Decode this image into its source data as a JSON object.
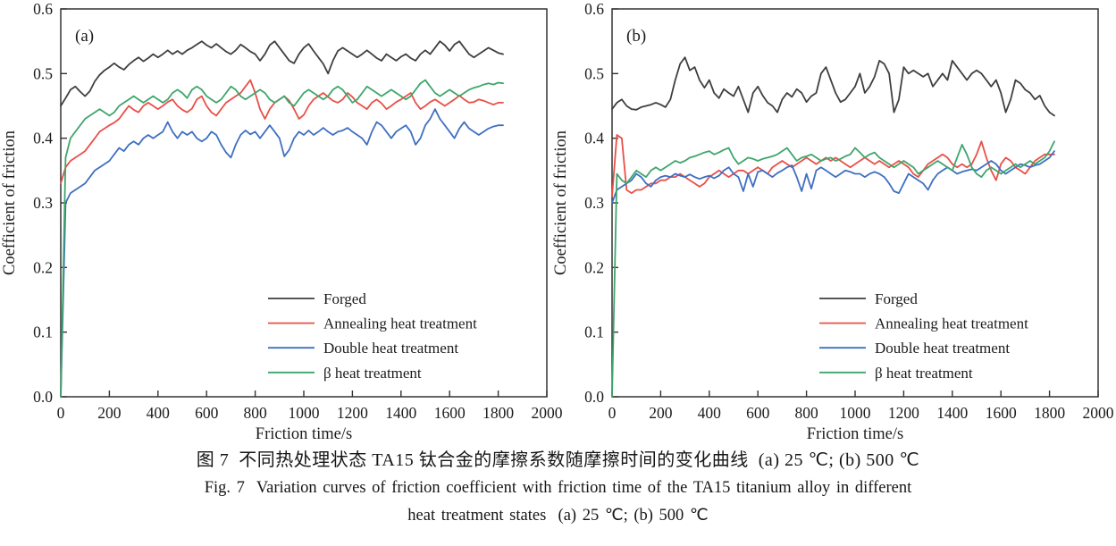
{
  "figure": {
    "caption_zh": "图 7  不同热处理状态 TA15 钛合金的摩擦系数随摩擦时间的变化曲线  (a) 25 ℃; (b) 500 ℃",
    "caption_en_line1": "Fig. 7  Variation curves of friction coefficient with friction time of the TA15 titanium alloy in different",
    "caption_en_line2": "heat treatment states  (a) 25 ℃; (b) 500 ℃"
  },
  "chart_data": [
    {
      "type": "line",
      "panel_label": "(a)",
      "temperature": "25 ℃",
      "xlabel": "Friction time/s",
      "ylabel": "Coefficient of friction",
      "xlim": [
        0,
        2000
      ],
      "ylim": [
        0.0,
        0.6
      ],
      "x_ticks": [
        0,
        200,
        400,
        600,
        800,
        1000,
        1200,
        1400,
        1600,
        1800,
        2000
      ],
      "y_ticks": [
        0.0,
        0.1,
        0.2,
        0.3,
        0.4,
        0.5,
        0.6
      ],
      "grid": false,
      "legend_position": "inside lower-right",
      "x_start": 0,
      "x_step": 20,
      "series": [
        {
          "name": "Forged",
          "color": "#3f3f3f",
          "values": [
            0.45,
            0.462,
            0.475,
            0.48,
            0.472,
            0.465,
            0.473,
            0.488,
            0.498,
            0.505,
            0.51,
            0.516,
            0.51,
            0.506,
            0.514,
            0.52,
            0.525,
            0.519,
            0.524,
            0.53,
            0.525,
            0.53,
            0.536,
            0.53,
            0.535,
            0.53,
            0.536,
            0.54,
            0.545,
            0.55,
            0.544,
            0.54,
            0.546,
            0.54,
            0.534,
            0.53,
            0.536,
            0.545,
            0.54,
            0.534,
            0.53,
            0.52,
            0.53,
            0.544,
            0.55,
            0.54,
            0.53,
            0.52,
            0.516,
            0.53,
            0.54,
            0.546,
            0.535,
            0.525,
            0.515,
            0.5,
            0.52,
            0.535,
            0.54,
            0.535,
            0.53,
            0.525,
            0.53,
            0.536,
            0.53,
            0.524,
            0.52,
            0.53,
            0.525,
            0.52,
            0.526,
            0.53,
            0.524,
            0.52,
            0.53,
            0.536,
            0.53,
            0.54,
            0.55,
            0.544,
            0.535,
            0.545,
            0.55,
            0.54,
            0.53,
            0.525,
            0.53,
            0.535,
            0.54,
            0.536,
            0.532,
            0.53
          ]
        },
        {
          "name": "Annealing heat treatment",
          "color": "#e94f48",
          "values": [
            0.33,
            0.355,
            0.365,
            0.37,
            0.375,
            0.38,
            0.39,
            0.4,
            0.41,
            0.415,
            0.42,
            0.424,
            0.43,
            0.44,
            0.45,
            0.444,
            0.44,
            0.45,
            0.455,
            0.45,
            0.445,
            0.45,
            0.456,
            0.46,
            0.45,
            0.444,
            0.44,
            0.446,
            0.46,
            0.465,
            0.45,
            0.44,
            0.435,
            0.445,
            0.455,
            0.46,
            0.465,
            0.47,
            0.48,
            0.49,
            0.47,
            0.445,
            0.43,
            0.445,
            0.455,
            0.46,
            0.465,
            0.458,
            0.445,
            0.43,
            0.436,
            0.45,
            0.46,
            0.465,
            0.47,
            0.464,
            0.458,
            0.455,
            0.46,
            0.47,
            0.464,
            0.455,
            0.45,
            0.445,
            0.455,
            0.46,
            0.454,
            0.445,
            0.45,
            0.456,
            0.46,
            0.465,
            0.47,
            0.455,
            0.445,
            0.45,
            0.456,
            0.46,
            0.455,
            0.45,
            0.455,
            0.46,
            0.466,
            0.46,
            0.455,
            0.456,
            0.46,
            0.458,
            0.455,
            0.452,
            0.455,
            0.455
          ]
        },
        {
          "name": "Double heat treatment",
          "color": "#3f6fc1",
          "values": [
            0.0,
            0.3,
            0.315,
            0.32,
            0.325,
            0.33,
            0.34,
            0.35,
            0.355,
            0.36,
            0.365,
            0.375,
            0.385,
            0.38,
            0.39,
            0.395,
            0.39,
            0.4,
            0.405,
            0.4,
            0.405,
            0.41,
            0.425,
            0.41,
            0.4,
            0.41,
            0.405,
            0.41,
            0.4,
            0.395,
            0.4,
            0.41,
            0.405,
            0.39,
            0.378,
            0.37,
            0.39,
            0.405,
            0.412,
            0.406,
            0.41,
            0.4,
            0.41,
            0.42,
            0.41,
            0.4,
            0.372,
            0.382,
            0.4,
            0.41,
            0.405,
            0.412,
            0.405,
            0.41,
            0.416,
            0.41,
            0.405,
            0.41,
            0.412,
            0.416,
            0.41,
            0.405,
            0.4,
            0.39,
            0.41,
            0.425,
            0.42,
            0.41,
            0.4,
            0.41,
            0.415,
            0.42,
            0.41,
            0.39,
            0.4,
            0.42,
            0.43,
            0.445,
            0.43,
            0.42,
            0.41,
            0.4,
            0.415,
            0.425,
            0.415,
            0.41,
            0.405,
            0.41,
            0.415,
            0.418,
            0.42,
            0.42
          ]
        },
        {
          "name": "β heat treatment",
          "color": "#3fa56c",
          "values": [
            0.0,
            0.37,
            0.4,
            0.41,
            0.42,
            0.43,
            0.435,
            0.44,
            0.445,
            0.44,
            0.435,
            0.44,
            0.45,
            0.455,
            0.46,
            0.465,
            0.46,
            0.455,
            0.46,
            0.465,
            0.46,
            0.455,
            0.46,
            0.47,
            0.475,
            0.47,
            0.462,
            0.475,
            0.48,
            0.475,
            0.465,
            0.46,
            0.455,
            0.46,
            0.47,
            0.48,
            0.475,
            0.465,
            0.46,
            0.465,
            0.47,
            0.475,
            0.47,
            0.46,
            0.455,
            0.46,
            0.465,
            0.455,
            0.45,
            0.46,
            0.47,
            0.475,
            0.47,
            0.465,
            0.46,
            0.465,
            0.475,
            0.48,
            0.475,
            0.465,
            0.455,
            0.46,
            0.47,
            0.48,
            0.475,
            0.47,
            0.465,
            0.47,
            0.475,
            0.47,
            0.465,
            0.46,
            0.465,
            0.475,
            0.485,
            0.49,
            0.48,
            0.47,
            0.465,
            0.47,
            0.475,
            0.47,
            0.465,
            0.47,
            0.475,
            0.478,
            0.48,
            0.483,
            0.485,
            0.483,
            0.486,
            0.485
          ]
        }
      ]
    },
    {
      "type": "line",
      "panel_label": "(b)",
      "temperature": "500 ℃",
      "xlabel": "Friction time/s",
      "ylabel": "Coefficient of friction",
      "xlim": [
        0,
        2000
      ],
      "ylim": [
        0.0,
        0.6
      ],
      "x_ticks": [
        0,
        200,
        400,
        600,
        800,
        1000,
        1200,
        1400,
        1600,
        1800,
        2000
      ],
      "y_ticks": [
        0.0,
        0.1,
        0.2,
        0.3,
        0.4,
        0.5,
        0.6
      ],
      "grid": false,
      "legend_position": "inside lower-right",
      "x_start": 0,
      "x_step": 20,
      "series": [
        {
          "name": "Forged",
          "color": "#3f3f3f",
          "values": [
            0.445,
            0.455,
            0.46,
            0.45,
            0.445,
            0.444,
            0.448,
            0.45,
            0.452,
            0.455,
            0.452,
            0.448,
            0.46,
            0.49,
            0.515,
            0.525,
            0.505,
            0.51,
            0.49,
            0.478,
            0.49,
            0.47,
            0.462,
            0.476,
            0.47,
            0.465,
            0.48,
            0.46,
            0.44,
            0.47,
            0.48,
            0.466,
            0.455,
            0.45,
            0.44,
            0.46,
            0.47,
            0.464,
            0.476,
            0.47,
            0.456,
            0.465,
            0.47,
            0.5,
            0.51,
            0.49,
            0.47,
            0.456,
            0.46,
            0.47,
            0.48,
            0.5,
            0.47,
            0.48,
            0.495,
            0.52,
            0.515,
            0.5,
            0.44,
            0.46,
            0.51,
            0.5,
            0.505,
            0.5,
            0.495,
            0.5,
            0.48,
            0.49,
            0.5,
            0.49,
            0.52,
            0.51,
            0.5,
            0.49,
            0.5,
            0.505,
            0.5,
            0.49,
            0.48,
            0.49,
            0.47,
            0.44,
            0.46,
            0.49,
            0.485,
            0.475,
            0.47,
            0.46,
            0.466,
            0.45,
            0.44,
            0.435
          ]
        },
        {
          "name": "Annealing heat treatment",
          "color": "#e94f48",
          "values": [
            0.31,
            0.405,
            0.4,
            0.32,
            0.315,
            0.32,
            0.32,
            0.325,
            0.33,
            0.33,
            0.335,
            0.335,
            0.34,
            0.34,
            0.345,
            0.34,
            0.335,
            0.33,
            0.325,
            0.33,
            0.34,
            0.345,
            0.35,
            0.345,
            0.34,
            0.345,
            0.35,
            0.35,
            0.345,
            0.35,
            0.355,
            0.35,
            0.345,
            0.355,
            0.36,
            0.365,
            0.36,
            0.355,
            0.36,
            0.365,
            0.37,
            0.365,
            0.36,
            0.365,
            0.37,
            0.365,
            0.37,
            0.365,
            0.36,
            0.355,
            0.36,
            0.365,
            0.37,
            0.365,
            0.36,
            0.365,
            0.36,
            0.355,
            0.36,
            0.365,
            0.36,
            0.355,
            0.345,
            0.34,
            0.35,
            0.36,
            0.365,
            0.37,
            0.375,
            0.37,
            0.36,
            0.355,
            0.36,
            0.355,
            0.36,
            0.375,
            0.395,
            0.37,
            0.35,
            0.335,
            0.36,
            0.37,
            0.365,
            0.355,
            0.35,
            0.345,
            0.355,
            0.365,
            0.37,
            0.375,
            0.375,
            0.375
          ]
        },
        {
          "name": "Double heat treatment",
          "color": "#3f6fc1",
          "values": [
            0.3,
            0.32,
            0.325,
            0.33,
            0.335,
            0.345,
            0.34,
            0.33,
            0.325,
            0.335,
            0.34,
            0.342,
            0.34,
            0.345,
            0.342,
            0.34,
            0.344,
            0.34,
            0.337,
            0.34,
            0.342,
            0.338,
            0.342,
            0.35,
            0.355,
            0.345,
            0.34,
            0.318,
            0.345,
            0.325,
            0.348,
            0.35,
            0.345,
            0.34,
            0.346,
            0.35,
            0.355,
            0.358,
            0.34,
            0.318,
            0.345,
            0.322,
            0.35,
            0.355,
            0.35,
            0.345,
            0.34,
            0.345,
            0.35,
            0.348,
            0.345,
            0.345,
            0.34,
            0.345,
            0.348,
            0.345,
            0.34,
            0.33,
            0.318,
            0.315,
            0.33,
            0.345,
            0.34,
            0.335,
            0.33,
            0.32,
            0.335,
            0.345,
            0.35,
            0.355,
            0.35,
            0.345,
            0.348,
            0.35,
            0.352,
            0.35,
            0.355,
            0.36,
            0.365,
            0.36,
            0.35,
            0.345,
            0.35,
            0.355,
            0.36,
            0.358,
            0.355,
            0.358,
            0.36,
            0.365,
            0.37,
            0.38
          ]
        },
        {
          "name": "β heat treatment",
          "color": "#3fa56c",
          "values": [
            0.0,
            0.345,
            0.335,
            0.33,
            0.34,
            0.35,
            0.345,
            0.34,
            0.35,
            0.355,
            0.35,
            0.355,
            0.36,
            0.365,
            0.362,
            0.365,
            0.37,
            0.372,
            0.375,
            0.378,
            0.38,
            0.375,
            0.378,
            0.382,
            0.385,
            0.37,
            0.36,
            0.365,
            0.37,
            0.368,
            0.365,
            0.368,
            0.37,
            0.372,
            0.375,
            0.38,
            0.385,
            0.375,
            0.365,
            0.37,
            0.372,
            0.375,
            0.37,
            0.365,
            0.368,
            0.37,
            0.365,
            0.368,
            0.372,
            0.375,
            0.385,
            0.378,
            0.37,
            0.375,
            0.378,
            0.37,
            0.365,
            0.36,
            0.355,
            0.36,
            0.365,
            0.36,
            0.355,
            0.345,
            0.35,
            0.355,
            0.36,
            0.365,
            0.36,
            0.355,
            0.35,
            0.37,
            0.39,
            0.375,
            0.355,
            0.345,
            0.34,
            0.35,
            0.355,
            0.35,
            0.345,
            0.35,
            0.355,
            0.36,
            0.355,
            0.36,
            0.365,
            0.36,
            0.365,
            0.37,
            0.38,
            0.395
          ]
        }
      ]
    }
  ]
}
